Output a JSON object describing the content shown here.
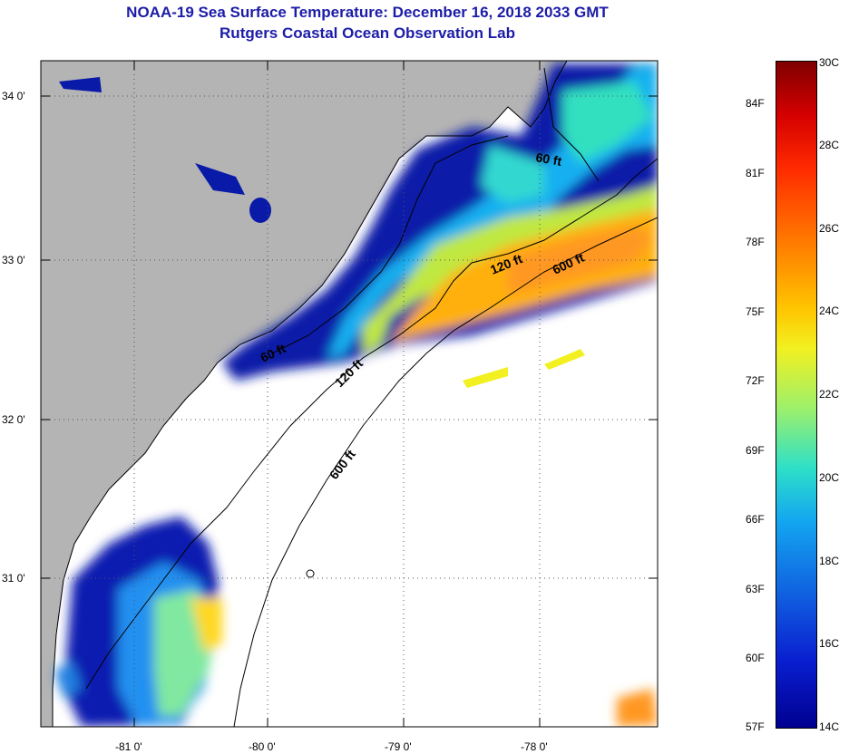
{
  "header": {
    "title": "NOAA-19 Sea Surface Temperature:  December 16, 2018 2033 GMT",
    "subtitle": "Rutgers Coastal Ocean Observation Lab"
  },
  "map": {
    "lat_labels": [
      "34 0'",
      "33 0'",
      "32 0'",
      "31 0'"
    ],
    "lon_labels": [
      "-81 0'",
      "-80 0'",
      "-79 0'",
      "-78 0'"
    ],
    "contours": [
      "60 ft",
      "120 ft",
      "600 ft",
      "60 ft",
      "120 ft",
      "600 ft"
    ]
  },
  "colorbar": {
    "fahrenheit": [
      "84F",
      "81F",
      "78F",
      "75F",
      "72F",
      "69F",
      "66F",
      "63F",
      "60F",
      "57F"
    ],
    "celsius": [
      "30C",
      "28C",
      "26C",
      "24C",
      "22C",
      "20C",
      "18C",
      "16C",
      "14C"
    ]
  },
  "colors": {
    "land": "#b4b4b4",
    "title": "#1c1ca8",
    "cloud": "#ffffff"
  }
}
